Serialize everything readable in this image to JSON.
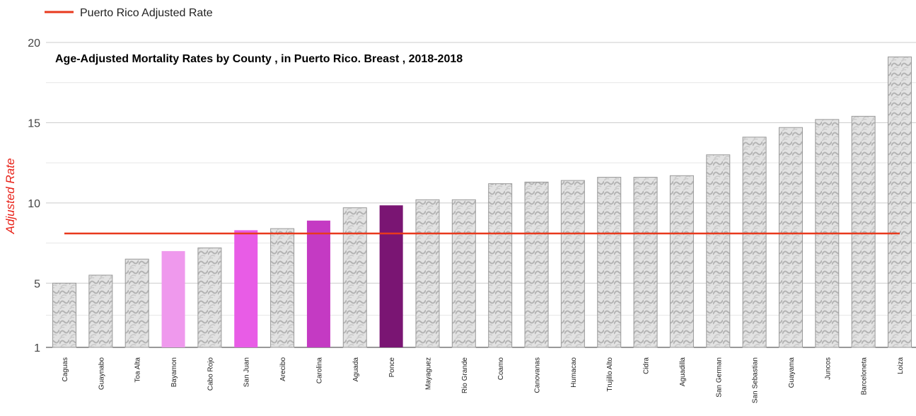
{
  "legend": {
    "label": "Puerto Rico Adjusted Rate"
  },
  "chart_data": {
    "type": "bar",
    "title": "Age-Adjusted Mortality Rates by County , in Puerto Rico. Breast , 2018-2018",
    "xlabel": "",
    "ylabel": "Adjusted Rate",
    "ylim": [
      1,
      20
    ],
    "yticks": [
      "1",
      "5",
      "10",
      "15",
      "20"
    ],
    "grid": true,
    "legend_position": "top-left",
    "categories": [
      "Caguas",
      "Guaynabo",
      "Toa Alta",
      "Bayamon",
      "Cabo Rojo",
      "San Juan",
      "Arecibo",
      "Carolina",
      "Aguada",
      "Ponce",
      "Mayaguez",
      "Rio Grande",
      "Coamo",
      "Canovanas",
      "Humacao",
      "Trujillo Alto",
      "Cidra",
      "Aguadilla",
      "San German",
      "San Sebastian",
      "Guayama",
      "Juncos",
      "Barceloneta",
      "Loiza"
    ],
    "values": [
      5.0,
      5.5,
      6.5,
      7.0,
      7.2,
      8.3,
      8.4,
      8.9,
      9.7,
      9.85,
      10.2,
      10.2,
      11.2,
      11.3,
      11.4,
      11.6,
      11.6,
      11.7,
      13.0,
      14.1,
      14.7,
      15.2,
      15.4,
      19.1
    ],
    "bar_fills": [
      "pattern",
      "pattern",
      "pattern",
      "#ef99ed",
      "pattern",
      "#e85ce6",
      "pattern",
      "#c43ac3",
      "pattern",
      "#7a1573",
      "pattern",
      "pattern",
      "pattern",
      "pattern",
      "pattern",
      "pattern",
      "pattern",
      "pattern",
      "pattern",
      "pattern",
      "pattern",
      "pattern",
      "pattern",
      "pattern"
    ],
    "reference_line": {
      "name": "Puerto Rico Adjusted Rate",
      "value": 8.1,
      "color": "#e8391d"
    },
    "colors": {
      "pattern_base": "#e2e2e2",
      "pattern_mark": "#b3b3b3",
      "bar_border": "#9a9a9a",
      "grid": "#cccccc",
      "axis_title": "#e8231a"
    }
  }
}
